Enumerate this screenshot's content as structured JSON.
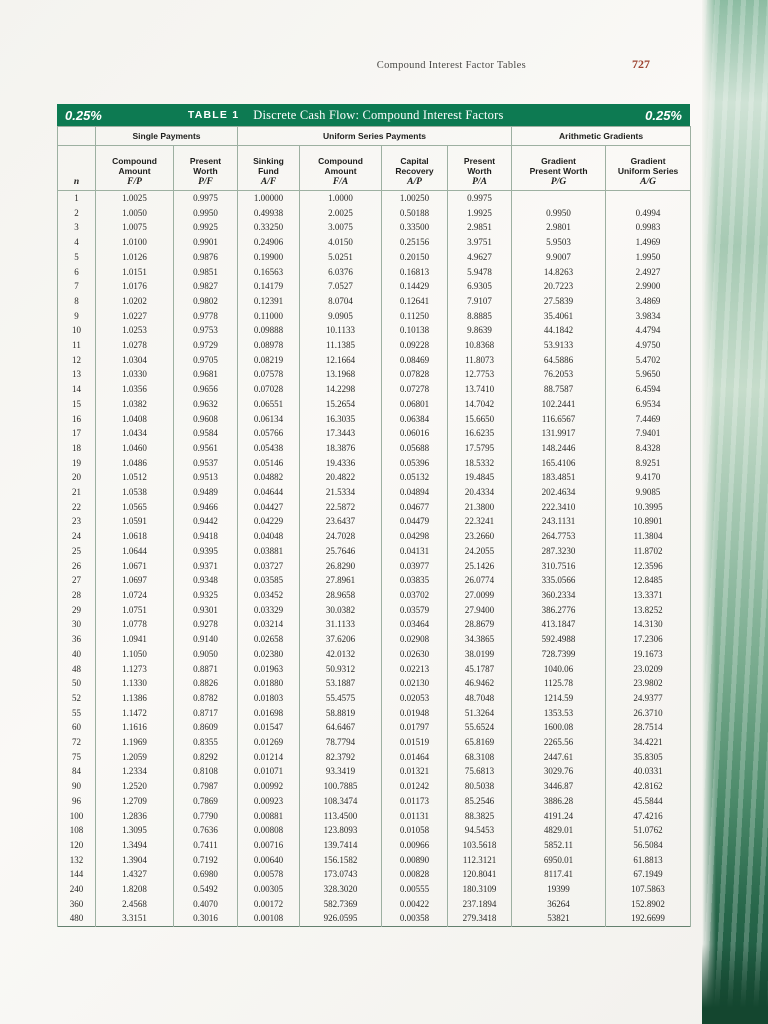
{
  "page": {
    "running_title": "Compound Interest Factor Tables",
    "page_number": "727"
  },
  "title_bar": {
    "rate_left": "0.25%",
    "table_label": "TABLE 1",
    "title": "Discrete Cash Flow: Compound Interest Factors",
    "rate_right": "0.25%",
    "bar_color": "#0d7a52"
  },
  "table": {
    "group_headers": [
      "Single Payments",
      "Uniform Series Payments",
      "Arithmetic Gradients"
    ],
    "columns": [
      {
        "title": "",
        "symbol": "n"
      },
      {
        "title": "Compound\nAmount",
        "symbol": "F/P"
      },
      {
        "title": "Present\nWorth",
        "symbol": "P/F"
      },
      {
        "title": "Sinking\nFund",
        "symbol": "A/F"
      },
      {
        "title": "Compound\nAmount",
        "symbol": "F/A"
      },
      {
        "title": "Capital\nRecovery",
        "symbol": "A/P"
      },
      {
        "title": "Present\nWorth",
        "symbol": "P/A"
      },
      {
        "title": "Gradient\nPresent Worth",
        "symbol": "P/G"
      },
      {
        "title": "Gradient\nUniform Series",
        "symbol": "A/G"
      }
    ],
    "rows": [
      [
        "1",
        "1.0025",
        "0.9975",
        "1.00000",
        "1.0000",
        "1.00250",
        "0.9975",
        "",
        ""
      ],
      [
        "2",
        "1.0050",
        "0.9950",
        "0.49938",
        "2.0025",
        "0.50188",
        "1.9925",
        "0.9950",
        "0.4994"
      ],
      [
        "3",
        "1.0075",
        "0.9925",
        "0.33250",
        "3.0075",
        "0.33500",
        "2.9851",
        "2.9801",
        "0.9983"
      ],
      [
        "4",
        "1.0100",
        "0.9901",
        "0.24906",
        "4.0150",
        "0.25156",
        "3.9751",
        "5.9503",
        "1.4969"
      ],
      [
        "5",
        "1.0126",
        "0.9876",
        "0.19900",
        "5.0251",
        "0.20150",
        "4.9627",
        "9.9007",
        "1.9950"
      ],
      [
        "6",
        "1.0151",
        "0.9851",
        "0.16563",
        "6.0376",
        "0.16813",
        "5.9478",
        "14.8263",
        "2.4927"
      ],
      [
        "7",
        "1.0176",
        "0.9827",
        "0.14179",
        "7.0527",
        "0.14429",
        "6.9305",
        "20.7223",
        "2.9900"
      ],
      [
        "8",
        "1.0202",
        "0.9802",
        "0.12391",
        "8.0704",
        "0.12641",
        "7.9107",
        "27.5839",
        "3.4869"
      ],
      [
        "9",
        "1.0227",
        "0.9778",
        "0.11000",
        "9.0905",
        "0.11250",
        "8.8885",
        "35.4061",
        "3.9834"
      ],
      [
        "10",
        "1.0253",
        "0.9753",
        "0.09888",
        "10.1133",
        "0.10138",
        "9.8639",
        "44.1842",
        "4.4794"
      ],
      [
        "11",
        "1.0278",
        "0.9729",
        "0.08978",
        "11.1385",
        "0.09228",
        "10.8368",
        "53.9133",
        "4.9750"
      ],
      [
        "12",
        "1.0304",
        "0.9705",
        "0.08219",
        "12.1664",
        "0.08469",
        "11.8073",
        "64.5886",
        "5.4702"
      ],
      [
        "13",
        "1.0330",
        "0.9681",
        "0.07578",
        "13.1968",
        "0.07828",
        "12.7753",
        "76.2053",
        "5.9650"
      ],
      [
        "14",
        "1.0356",
        "0.9656",
        "0.07028",
        "14.2298",
        "0.07278",
        "13.7410",
        "88.7587",
        "6.4594"
      ],
      [
        "15",
        "1.0382",
        "0.9632",
        "0.06551",
        "15.2654",
        "0.06801",
        "14.7042",
        "102.2441",
        "6.9534"
      ],
      [
        "16",
        "1.0408",
        "0.9608",
        "0.06134",
        "16.3035",
        "0.06384",
        "15.6650",
        "116.6567",
        "7.4469"
      ],
      [
        "17",
        "1.0434",
        "0.9584",
        "0.05766",
        "17.3443",
        "0.06016",
        "16.6235",
        "131.9917",
        "7.9401"
      ],
      [
        "18",
        "1.0460",
        "0.9561",
        "0.05438",
        "18.3876",
        "0.05688",
        "17.5795",
        "148.2446",
        "8.4328"
      ],
      [
        "19",
        "1.0486",
        "0.9537",
        "0.05146",
        "19.4336",
        "0.05396",
        "18.5332",
        "165.4106",
        "8.9251"
      ],
      [
        "20",
        "1.0512",
        "0.9513",
        "0.04882",
        "20.4822",
        "0.05132",
        "19.4845",
        "183.4851",
        "9.4170"
      ],
      [
        "21",
        "1.0538",
        "0.9489",
        "0.04644",
        "21.5334",
        "0.04894",
        "20.4334",
        "202.4634",
        "9.9085"
      ],
      [
        "22",
        "1.0565",
        "0.9466",
        "0.04427",
        "22.5872",
        "0.04677",
        "21.3800",
        "222.3410",
        "10.3995"
      ],
      [
        "23",
        "1.0591",
        "0.9442",
        "0.04229",
        "23.6437",
        "0.04479",
        "22.3241",
        "243.1131",
        "10.8901"
      ],
      [
        "24",
        "1.0618",
        "0.9418",
        "0.04048",
        "24.7028",
        "0.04298",
        "23.2660",
        "264.7753",
        "11.3804"
      ],
      [
        "25",
        "1.0644",
        "0.9395",
        "0.03881",
        "25.7646",
        "0.04131",
        "24.2055",
        "287.3230",
        "11.8702"
      ],
      [
        "26",
        "1.0671",
        "0.9371",
        "0.03727",
        "26.8290",
        "0.03977",
        "25.1426",
        "310.7516",
        "12.3596"
      ],
      [
        "27",
        "1.0697",
        "0.9348",
        "0.03585",
        "27.8961",
        "0.03835",
        "26.0774",
        "335.0566",
        "12.8485"
      ],
      [
        "28",
        "1.0724",
        "0.9325",
        "0.03452",
        "28.9658",
        "0.03702",
        "27.0099",
        "360.2334",
        "13.3371"
      ],
      [
        "29",
        "1.0751",
        "0.9301",
        "0.03329",
        "30.0382",
        "0.03579",
        "27.9400",
        "386.2776",
        "13.8252"
      ],
      [
        "30",
        "1.0778",
        "0.9278",
        "0.03214",
        "31.1133",
        "0.03464",
        "28.8679",
        "413.1847",
        "14.3130"
      ],
      [
        "36",
        "1.0941",
        "0.9140",
        "0.02658",
        "37.6206",
        "0.02908",
        "34.3865",
        "592.4988",
        "17.2306"
      ],
      [
        "40",
        "1.1050",
        "0.9050",
        "0.02380",
        "42.0132",
        "0.02630",
        "38.0199",
        "728.7399",
        "19.1673"
      ],
      [
        "48",
        "1.1273",
        "0.8871",
        "0.01963",
        "50.9312",
        "0.02213",
        "45.1787",
        "1040.06",
        "23.0209"
      ],
      [
        "50",
        "1.1330",
        "0.8826",
        "0.01880",
        "53.1887",
        "0.02130",
        "46.9462",
        "1125.78",
        "23.9802"
      ],
      [
        "52",
        "1.1386",
        "0.8782",
        "0.01803",
        "55.4575",
        "0.02053",
        "48.7048",
        "1214.59",
        "24.9377"
      ],
      [
        "55",
        "1.1472",
        "0.8717",
        "0.01698",
        "58.8819",
        "0.01948",
        "51.3264",
        "1353.53",
        "26.3710"
      ],
      [
        "60",
        "1.1616",
        "0.8609",
        "0.01547",
        "64.6467",
        "0.01797",
        "55.6524",
        "1600.08",
        "28.7514"
      ],
      [
        "72",
        "1.1969",
        "0.8355",
        "0.01269",
        "78.7794",
        "0.01519",
        "65.8169",
        "2265.56",
        "34.4221"
      ],
      [
        "75",
        "1.2059",
        "0.8292",
        "0.01214",
        "82.3792",
        "0.01464",
        "68.3108",
        "2447.61",
        "35.8305"
      ],
      [
        "84",
        "1.2334",
        "0.8108",
        "0.01071",
        "93.3419",
        "0.01321",
        "75.6813",
        "3029.76",
        "40.0331"
      ],
      [
        "90",
        "1.2520",
        "0.7987",
        "0.00992",
        "100.7885",
        "0.01242",
        "80.5038",
        "3446.87",
        "42.8162"
      ],
      [
        "96",
        "1.2709",
        "0.7869",
        "0.00923",
        "108.3474",
        "0.01173",
        "85.2546",
        "3886.28",
        "45.5844"
      ],
      [
        "100",
        "1.2836",
        "0.7790",
        "0.00881",
        "113.4500",
        "0.01131",
        "88.3825",
        "4191.24",
        "47.4216"
      ],
      [
        "108",
        "1.3095",
        "0.7636",
        "0.00808",
        "123.8093",
        "0.01058",
        "94.5453",
        "4829.01",
        "51.0762"
      ],
      [
        "120",
        "1.3494",
        "0.7411",
        "0.00716",
        "139.7414",
        "0.00966",
        "103.5618",
        "5852.11",
        "56.5084"
      ],
      [
        "132",
        "1.3904",
        "0.7192",
        "0.00640",
        "156.1582",
        "0.00890",
        "112.3121",
        "6950.01",
        "61.8813"
      ],
      [
        "144",
        "1.4327",
        "0.6980",
        "0.00578",
        "173.0743",
        "0.00828",
        "120.8041",
        "8117.41",
        "67.1949"
      ],
      [
        "240",
        "1.8208",
        "0.5492",
        "0.00305",
        "328.3020",
        "0.00555",
        "180.3109",
        "19399",
        "107.5863"
      ],
      [
        "360",
        "2.4568",
        "0.4070",
        "0.00172",
        "582.7369",
        "0.00422",
        "237.1894",
        "36264",
        "152.8902"
      ],
      [
        "480",
        "3.3151",
        "0.3016",
        "0.00108",
        "926.0595",
        "0.00358",
        "279.3418",
        "53821",
        "192.6699"
      ]
    ]
  }
}
